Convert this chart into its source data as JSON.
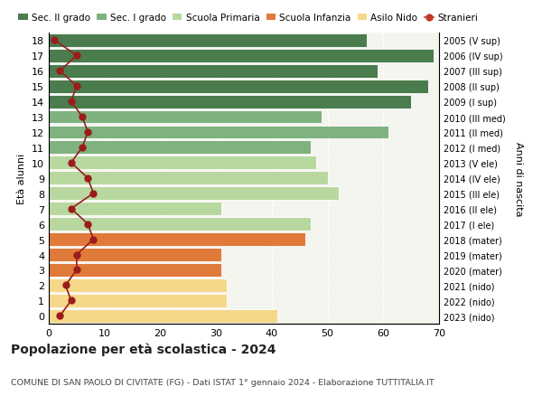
{
  "ages": [
    18,
    17,
    16,
    15,
    14,
    13,
    12,
    11,
    10,
    9,
    8,
    7,
    6,
    5,
    4,
    3,
    2,
    1,
    0
  ],
  "bar_values": [
    57,
    69,
    59,
    68,
    65,
    49,
    61,
    47,
    48,
    50,
    52,
    31,
    47,
    46,
    31,
    31,
    32,
    32,
    41
  ],
  "bar_colors": [
    "#4a7c4e",
    "#4a7c4e",
    "#4a7c4e",
    "#4a7c4e",
    "#4a7c4e",
    "#7fb27f",
    "#7fb27f",
    "#7fb27f",
    "#b8d8a0",
    "#b8d8a0",
    "#b8d8a0",
    "#b8d8a0",
    "#b8d8a0",
    "#e07a3a",
    "#e07a3a",
    "#e07a3a",
    "#f5d88a",
    "#f5d88a",
    "#f5d88a"
  ],
  "stranieri_values": [
    1,
    5,
    2,
    5,
    4,
    6,
    7,
    6,
    4,
    7,
    8,
    4,
    7,
    8,
    5,
    5,
    3,
    4,
    2
  ],
  "right_labels": [
    "2005 (V sup)",
    "2006 (IV sup)",
    "2007 (III sup)",
    "2008 (II sup)",
    "2009 (I sup)",
    "2010 (III med)",
    "2011 (II med)",
    "2012 (I med)",
    "2013 (V ele)",
    "2014 (IV ele)",
    "2015 (III ele)",
    "2016 (II ele)",
    "2017 (I ele)",
    "2018 (mater)",
    "2019 (mater)",
    "2020 (mater)",
    "2021 (nido)",
    "2022 (nido)",
    "2023 (nido)"
  ],
  "legend_labels": [
    "Sec. II grado",
    "Sec. I grado",
    "Scuola Primaria",
    "Scuola Infanzia",
    "Asilo Nido",
    "Stranieri"
  ],
  "legend_colors": [
    "#4a7c4e",
    "#7fb27f",
    "#b8d8a0",
    "#e07a3a",
    "#f5d88a",
    "#c0392b"
  ],
  "ylabel_left": "Età alunni",
  "ylabel_right": "Anni di nascita",
  "title": "Popolazione per età scolastica - 2024",
  "subtitle": "COMUNE DI SAN PAOLO DI CIVITATE (FG) - Dati ISTAT 1° gennaio 2024 - Elaborazione TUTTITALIA.IT",
  "xlim": [
    0,
    70
  ],
  "xticks": [
    0,
    10,
    20,
    30,
    40,
    50,
    60,
    70
  ],
  "ylim": [
    -0.5,
    18.5
  ],
  "background_color": "#ffffff",
  "plot_bg_color": "#f5f5f0",
  "bar_height": 0.88,
  "stranieri_color": "#9b1c1c",
  "stranieri_markersize": 5,
  "stranieri_linewidth": 1.2
}
